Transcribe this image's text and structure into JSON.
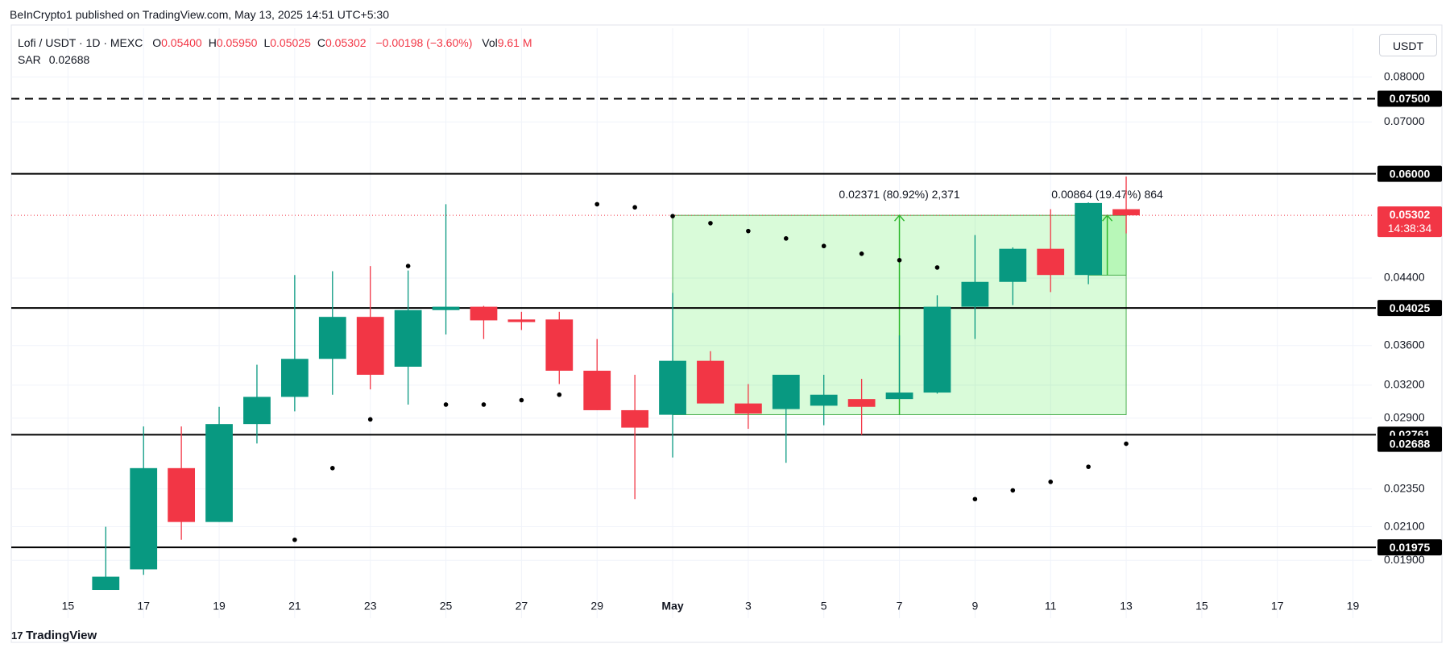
{
  "header": "BeInCrypto1 published on TradingView.com, May 13, 2025 14:51 UTC+5:30",
  "footer": "TradingView",
  "currency_button": "USDT",
  "legend": {
    "symbol": "Lofi / USDT · 1D · MEXC",
    "items": [
      {
        "key": "O",
        "value": "0.05400"
      },
      {
        "key": "H",
        "value": "0.05950"
      },
      {
        "key": "L",
        "value": "0.05025"
      },
      {
        "key": "C",
        "value": "0.05302"
      }
    ],
    "change": "−0.00198 (−3.60%)",
    "volume_key": "Vol",
    "volume": "9.61 M",
    "sar_key": "SAR",
    "sar_value": "0.02688"
  },
  "chart_data": {
    "type": "candlestick",
    "log_scale": true,
    "grid": true,
    "up_color": "#089981",
    "down_color": "#f23645",
    "categories": [
      null,
      "15",
      null,
      "17",
      null,
      "19",
      null,
      "21",
      null,
      "23",
      null,
      "25",
      null,
      "27",
      null,
      "29",
      null,
      "May",
      null,
      "3",
      null,
      "5",
      null,
      "7",
      null,
      "9",
      null,
      "11",
      null,
      "13",
      null,
      "15",
      null,
      "17",
      null,
      "19"
    ],
    "open": [
      null,
      null,
      0.0174,
      0.0185,
      0.025,
      0.0213,
      0.0285,
      0.0309,
      0.0346,
      0.0392,
      0.0338,
      0.04,
      0.0404,
      0.0389,
      0.0389,
      0.0334,
      0.0297,
      0.0293,
      0.0344,
      0.0303,
      0.0298,
      0.0301,
      0.0307,
      0.0307,
      0.0313,
      0.0404,
      0.0435,
      0.048,
      0.0444,
      0.054,
      null,
      null,
      null,
      null,
      null,
      null
    ],
    "high": [
      null,
      null,
      0.021,
      0.0283,
      0.0283,
      0.03,
      0.034,
      0.0444,
      0.0449,
      0.0456,
      0.045,
      0.0548,
      0.0405,
      0.0398,
      0.0398,
      0.0367,
      0.033,
      0.0421,
      0.0354,
      0.0321,
      0.033,
      0.033,
      0.0326,
      0.0371,
      0.0418,
      0.05,
      0.0482,
      0.054,
      0.0551,
      0.0595,
      null,
      null,
      null,
      null,
      null,
      null
    ],
    "low": [
      null,
      null,
      0.0174,
      0.0182,
      0.0202,
      0.0213,
      0.0269,
      0.0296,
      0.0311,
      0.0316,
      0.0302,
      0.0372,
      0.0367,
      0.0377,
      0.0321,
      0.0297,
      0.0228,
      0.0258,
      0.0303,
      0.0281,
      0.0254,
      0.0284,
      0.0276,
      0.0307,
      0.0312,
      0.0367,
      0.0406,
      0.0422,
      0.0432,
      0.05025,
      null,
      null,
      null,
      null,
      null,
      null
    ],
    "close": [
      null,
      null,
      0.0181,
      0.025,
      0.0213,
      0.0285,
      0.0309,
      0.0346,
      0.0392,
      0.033,
      0.04,
      0.0404,
      0.0388,
      0.0386,
      0.0334,
      0.0297,
      0.0282,
      0.0344,
      0.0303,
      0.0294,
      0.033,
      0.0311,
      0.03,
      0.0313,
      0.0404,
      0.0435,
      0.048,
      0.0444,
      0.055,
      0.05302,
      null,
      null,
      null,
      null,
      null,
      null
    ],
    "sar": {
      "name": "SAR",
      "color": "#000000",
      "values": [
        null,
        null,
        null,
        null,
        null,
        null,
        null,
        0.0202,
        0.025,
        0.0289,
        0.0456,
        0.0302,
        0.0302,
        0.0306,
        0.0311,
        0.0548,
        0.0543,
        0.0529,
        0.0518,
        0.0506,
        0.0495,
        0.0484,
        0.0473,
        0.0464,
        0.0454,
        0.0228,
        0.0234,
        0.024,
        0.0251,
        0.02688,
        null,
        null,
        null,
        null,
        null,
        null
      ]
    },
    "ylim": [
      0.016,
      0.0925
    ],
    "yticks": [
      {
        "value": 0.08,
        "label": "0.08000"
      },
      {
        "value": 0.07,
        "label": "0.07000"
      },
      {
        "value": 0.044,
        "label": "0.04400"
      },
      {
        "value": 0.036,
        "label": "0.03600"
      },
      {
        "value": 0.032,
        "label": "0.03200"
      },
      {
        "value": 0.029,
        "label": "0.02900"
      },
      {
        "value": 0.0235,
        "label": "0.02350"
      },
      {
        "value": 0.021,
        "label": "0.02100"
      },
      {
        "value": 0.019,
        "label": "0.01900"
      }
    ],
    "price_lines": [
      {
        "value": 0.075,
        "label": "0.07500",
        "dashed": true
      },
      {
        "value": 0.06,
        "label": "0.06000",
        "dashed": false
      },
      {
        "value": 0.04025,
        "label": "0.04025",
        "dashed": false
      },
      {
        "value": 0.02761,
        "label": "0.02761",
        "dashed": false
      },
      {
        "value": 0.01975,
        "label": "0.01975",
        "dashed": false
      }
    ],
    "current_price": 0.05302,
    "countdown": "14:38:34",
    "sar_label": "0.02688",
    "measures": [
      {
        "label": "0.02371 (80.92%) 2,371",
        "start_index": 17,
        "end_index": 29,
        "from": 0.02931,
        "to": 0.05302
      },
      {
        "label": "0.00864 (19.47%) 864",
        "start_index": 28,
        "end_index": 29,
        "from": 0.04438,
        "to": 0.05302
      }
    ]
  }
}
